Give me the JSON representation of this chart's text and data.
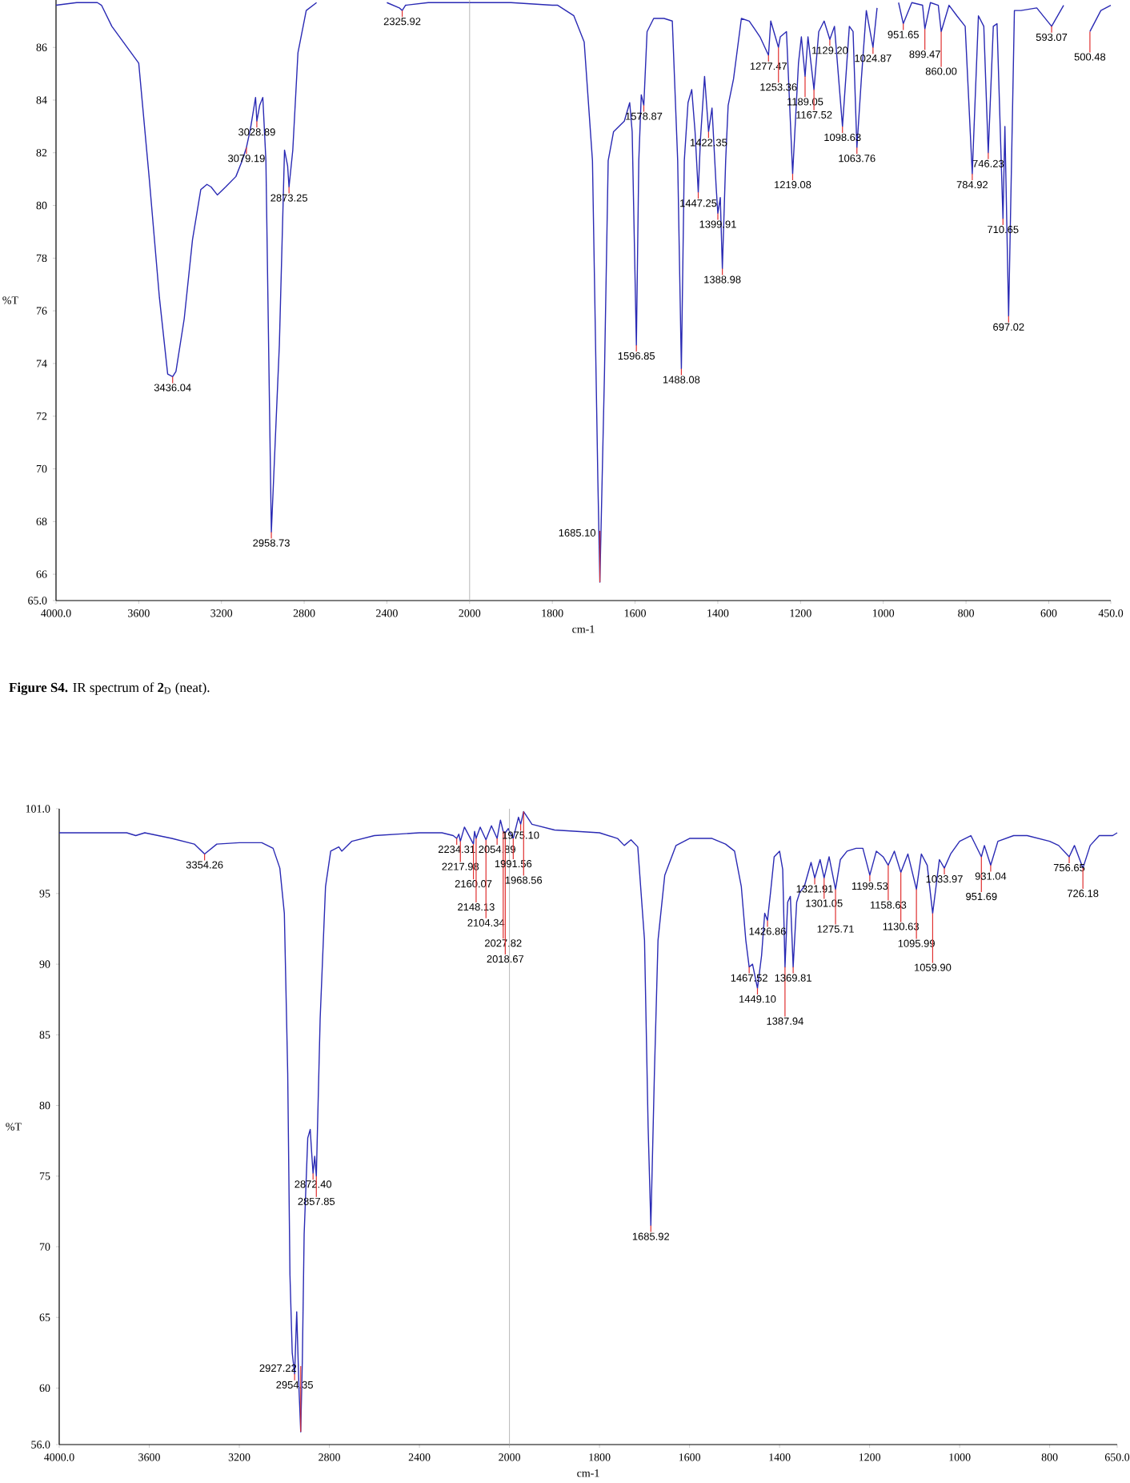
{
  "chart_data": [
    {
      "type": "line",
      "ylabel": "%T",
      "color": "#2a2ab4",
      "xlim": [
        4000,
        2000
      ],
      "ylim": [
        65.0,
        87.8
      ],
      "xticks": [
        {
          "value": 4000,
          "label": "4000.0"
        },
        3600,
        3200,
        2800,
        2400,
        2000
      ],
      "yticks": [
        {
          "value": 65,
          "label": "65.0"
        },
        66,
        68,
        70,
        72,
        74,
        76,
        78,
        80,
        82,
        84,
        86
      ],
      "x": [
        4000,
        3900,
        3800,
        3780,
        3730,
        3600,
        3550,
        3500,
        3460,
        3436.04,
        3420,
        3380,
        3340,
        3300,
        3270,
        3250,
        3220,
        3180,
        3130,
        3100,
        3079.19,
        3060,
        3035,
        3028.89,
        3015,
        3000,
        2985,
        2958.73,
        2920,
        2895,
        2880,
        2873.25,
        2855,
        2830,
        2790,
        2740,
        2600,
        2400,
        2340,
        2325.92,
        2310,
        2200,
        2000
      ],
      "values": [
        87.6,
        87.7,
        87.7,
        87.6,
        86.8,
        85.4,
        81.1,
        76.5,
        73.6,
        73.5,
        73.7,
        75.7,
        78.7,
        80.6,
        80.8,
        80.7,
        80.4,
        80.7,
        81.1,
        81.7,
        82.2,
        82.9,
        84.1,
        83.2,
        83.8,
        84.1,
        81.7,
        67.6,
        74.7,
        82.1,
        81.5,
        80.7,
        82.1,
        85.8,
        87.4,
        87.7,
        null,
        87.7,
        87.5,
        87.4,
        87.6,
        87.7,
        87.7
      ],
      "annotations": [
        {
          "text": "3436.04",
          "x": 3436.04,
          "y": 73.5
        },
        {
          "text": "3079.19",
          "x": 3079.19,
          "y": 82.2
        },
        {
          "text": "3028.89",
          "x": 3028.89,
          "y": 83.2
        },
        {
          "text": "2958.73",
          "x": 2958.73,
          "y": 67.6
        },
        {
          "text": "2873.25",
          "x": 2873.25,
          "y": 80.7
        },
        {
          "text": "2325.92",
          "x": 2325.92,
          "y": 87.4
        },
        "**Figure S4.** IR spectrum of **2**$_{D}$ (neat)."
      ]
    },
    {
      "type": "line",
      "xlabel": "cm-1",
      "color": "#2a2ab4",
      "tick_labels": "x",
      "xlim": [
        2000,
        450
      ],
      "ylim": [
        65.0,
        87.8
      ],
      "xticks": [
        1800,
        1600,
        1400,
        1200,
        1000,
        800,
        600,
        {
          "value": 450,
          "label": "450.0"
        }
      ],
      "x": [
        2000,
        1900,
        1800,
        1787,
        1748,
        1723,
        1703,
        1690,
        1685.1,
        1674,
        1665,
        1652,
        1626,
        1613,
        1607,
        1596.85,
        1591,
        1585,
        1578.87,
        1571,
        1555,
        1530,
        1510,
        1497,
        1488.08,
        1481,
        1472,
        1463,
        1455,
        1447.25,
        1442,
        1432,
        1422.35,
        1414,
        1404,
        1399.91,
        1394,
        1388.98,
        1381,
        1375,
        1362,
        1343,
        1324,
        1311,
        1298,
        1277.47,
        1272,
        1253.36,
        1249,
        1234,
        1219.08,
        1205,
        1198,
        1189.05,
        1182,
        1167.52,
        1156,
        1143,
        1129.2,
        1118,
        1098.63,
        1082,
        1073,
        1063.76,
        1053,
        1041,
        1024.87,
        1015,
        989,
        963,
        951.65,
        931,
        905,
        899.47,
        886,
        867,
        860.0,
        841,
        822,
        802,
        784.92,
        770,
        757,
        746.23,
        734,
        725,
        710.65,
        706,
        697.02,
        683,
        667,
        629,
        593.07,
        564,
        526,
        500.48,
        474,
        450
      ],
      "values": [
        87.7,
        87.7,
        87.6,
        87.6,
        87.2,
        86.2,
        81.7,
        69.6,
        65.7,
        73.6,
        81.7,
        82.8,
        83.2,
        83.9,
        82.8,
        74.7,
        81.7,
        84.2,
        83.8,
        86.6,
        87.1,
        87.1,
        87.0,
        81.7,
        73.8,
        81.7,
        83.9,
        84.4,
        82.8,
        80.5,
        82.5,
        84.9,
        82.8,
        83.7,
        80.7,
        79.7,
        80.3,
        77.6,
        81.7,
        83.8,
        84.8,
        87.1,
        87.0,
        86.7,
        86.4,
        85.7,
        87.0,
        86.0,
        86.4,
        86.6,
        81.2,
        85.4,
        86.4,
        84.9,
        86.4,
        84.4,
        86.6,
        87.0,
        86.3,
        86.8,
        83.0,
        86.8,
        86.6,
        82.2,
        84.8,
        87.4,
        86.0,
        87.5,
        null,
        87.7,
        86.9,
        87.7,
        87.6,
        86.7,
        87.7,
        87.6,
        86.6,
        87.6,
        87.2,
        86.8,
        81.2,
        87.2,
        86.8,
        82.0,
        86.8,
        86.9,
        79.5,
        83.0,
        75.8,
        87.4,
        87.4,
        87.5,
        86.8,
        87.6,
        null,
        86.6,
        87.4,
        87.6
      ],
      "annotations": [
        {
          "text": "1685.10",
          "x": 1685.1,
          "y": 65.7
        },
        {
          "text": "1596.85",
          "x": 1596.85,
          "y": 74.7
        },
        {
          "text": "1578.87",
          "x": 1578.87,
          "y": 83.8
        },
        {
          "text": "1488.08",
          "x": 1488.08,
          "y": 73.8
        },
        {
          "text": "1447.25",
          "x": 1447.25,
          "y": 80.5
        },
        {
          "text": "1422.35",
          "x": 1422.35,
          "y": 82.8
        },
        {
          "text": "1399.91",
          "x": 1399.91,
          "y": 79.7
        },
        {
          "text": "1388.98",
          "x": 1388.98,
          "y": 77.6
        },
        {
          "text": "1277.47",
          "x": 1277.47,
          "y": 85.7
        },
        {
          "text": "1253.36",
          "x": 1253.36,
          "y": 86.0
        },
        {
          "text": "1219.08",
          "x": 1219.08,
          "y": 81.2
        },
        {
          "text": "1189.05",
          "x": 1189.05,
          "y": 84.9
        },
        {
          "text": "1167.52",
          "x": 1167.52,
          "y": 84.4
        },
        {
          "text": "1129.20",
          "x": 1129.2,
          "y": 86.3
        },
        {
          "text": "1098.63",
          "x": 1098.63,
          "y": 83.0
        },
        {
          "text": "1063.76",
          "x": 1063.76,
          "y": 82.2
        },
        {
          "text": "1024.87",
          "x": 1024.87,
          "y": 86.0
        },
        {
          "text": "951.65",
          "x": 951.65,
          "y": 86.9
        },
        {
          "text": "899.47",
          "x": 899.47,
          "y": 86.7
        },
        {
          "text": "860.00",
          "x": 860.0,
          "y": 86.6
        },
        {
          "text": "784.92",
          "x": 784.92,
          "y": 81.2
        },
        {
          "text": "746.23",
          "x": 746.23,
          "y": 82.0
        },
        {
          "text": "710.65",
          "x": 710.65,
          "y": 79.5
        },
        {
          "text": "697.02",
          "x": 697.02,
          "y": 75.8
        },
        {
          "text": "593.07",
          "x": 593.07,
          "y": 86.8
        },
        {
          "text": "500.48",
          "x": 500.48,
          "y": 86.6
        }
      ]
    },
    {
      "type": "line",
      "ylabel": "%T",
      "color": "#2a2ab4",
      "xlim": [
        4000,
        2000
      ],
      "ylim": [
        56.0,
        101.0
      ],
      "xticks": [
        {
          "value": 4000,
          "label": "4000.0"
        },
        3600,
        3200,
        2800,
        2400,
        2000
      ],
      "yticks": [
        {
          "value": 56,
          "label": "56.0"
        },
        60,
        65,
        70,
        75,
        80,
        85,
        90,
        95,
        {
          "value": 101,
          "label": "101.0"
        }
      ],
      "x": [
        4000,
        3800,
        3700,
        3660,
        3620,
        3500,
        3400,
        3354.26,
        3300,
        3200,
        3100,
        3050,
        3020,
        3000,
        2985,
        2975,
        2965,
        2954.35,
        2945,
        2935,
        2927.22,
        2920,
        2912,
        2896,
        2885,
        2878,
        2872.4,
        2865,
        2857.85,
        2841,
        2817,
        2794,
        2758,
        2745,
        2700,
        2600,
        2400,
        2300,
        2250,
        2234.31,
        2225,
        2217.98,
        2200,
        2160.07,
        2155,
        2148.13,
        2130,
        2104.34,
        2080,
        2054.89,
        2040,
        2027.82,
        2018.67,
        2005,
        2000
      ],
      "values": [
        99.3,
        99.3,
        99.3,
        99.1,
        99.3,
        98.9,
        98.5,
        97.8,
        98.5,
        98.6,
        98.6,
        98.2,
        96.8,
        93.6,
        82.3,
        68.0,
        62.5,
        61.0,
        65.4,
        60.0,
        56.9,
        62.0,
        70.9,
        77.7,
        78.3,
        76.5,
        75.2,
        76.4,
        75.0,
        86.1,
        95.5,
        98.0,
        98.3,
        98.0,
        98.7,
        99.1,
        99.3,
        99.3,
        99.1,
        98.9,
        99.2,
        98.7,
        99.7,
        98.5,
        99.4,
        98.9,
        99.7,
        98.8,
        99.8,
        98.9,
        100.2,
        99.4,
        99.3,
        99.6,
        99.4
      ],
      "annotations": [
        {
          "text": "3354.26",
          "x": 3354.26,
          "y": 97.8
        },
        {
          "text": "2954.35",
          "x": 2954.35,
          "y": 61.0
        },
        {
          "text": "2927.22",
          "x": 2927.22,
          "y": 56.9
        },
        {
          "text": "2872.40",
          "x": 2872.4,
          "y": 75.2
        },
        {
          "text": "2857.85",
          "x": 2857.85,
          "y": 75.0
        },
        {
          "text": "2234.31",
          "x": 2234.31,
          "y": 98.9
        },
        {
          "text": "2217.98",
          "x": 2217.98,
          "y": 98.7
        },
        {
          "text": "2160.07",
          "x": 2160.07,
          "y": 98.5
        },
        {
          "text": "2148.13",
          "x": 2148.13,
          "y": 98.9
        },
        {
          "text": "2104.34",
          "x": 2104.34,
          "y": 98.8
        },
        {
          "text": "2054.89",
          "x": 2054.89,
          "y": 98.9
        },
        {
          "text": "2027.82",
          "x": 2027.82,
          "y": 99.4
        },
        {
          "text": "2018.67",
          "x": 2018.67,
          "y": 99.3
        }
      ]
    },
    {
      "type": "line",
      "xlabel": "cm-1",
      "color": "#2a2ab4",
      "tick_labels": "x",
      "xlim": [
        2000,
        650
      ],
      "ylim": [
        56.0,
        101.0
      ],
      "xticks": [
        1800,
        1600,
        1400,
        1200,
        1000,
        800,
        {
          "value": 650,
          "label": "650.0"
        }
      ],
      "x": [
        2000,
        1991.56,
        1980,
        1975.1,
        1968.56,
        1950,
        1900,
        1800,
        1760,
        1745,
        1730,
        1715,
        1700,
        1692,
        1685.92,
        1678,
        1670,
        1655,
        1630,
        1600,
        1550,
        1520,
        1500,
        1485,
        1475,
        1467.52,
        1460,
        1449.1,
        1440,
        1433,
        1426.86,
        1420,
        1412,
        1400,
        1393,
        1387.94,
        1382,
        1376,
        1369.81,
        1362,
        1355,
        1345,
        1330,
        1321.91,
        1310,
        1301.05,
        1290,
        1275.71,
        1265,
        1250,
        1230,
        1215,
        1199.53,
        1185,
        1170,
        1158.63,
        1145,
        1130.63,
        1115,
        1095.99,
        1085,
        1072,
        1059.9,
        1045,
        1033.97,
        1020,
        1000,
        975,
        951.69,
        945,
        931.04,
        915,
        880,
        850,
        800,
        780,
        756.65,
        745,
        726.18,
        710,
        690,
        660,
        650
      ],
      "values": [
        99.4,
        98.9,
        100.4,
        99.9,
        100.8,
        99.9,
        99.5,
        99.3,
        98.9,
        98.4,
        98.8,
        98.3,
        91.7,
        78.5,
        71.5,
        82.3,
        91.7,
        96.3,
        98.4,
        98.9,
        98.9,
        98.5,
        98.0,
        95.5,
        91.7,
        89.8,
        90.0,
        88.3,
        90.6,
        93.6,
        93.1,
        95.1,
        97.6,
        98.0,
        96.7,
        89.8,
        94.4,
        94.8,
        89.8,
        94.4,
        95.1,
        95.5,
        97.2,
        96.1,
        97.4,
        96.1,
        97.6,
        95.3,
        97.4,
        98.0,
        98.2,
        98.2,
        96.3,
        98.0,
        97.6,
        97.0,
        98.0,
        96.5,
        97.8,
        95.3,
        97.8,
        97.0,
        93.6,
        97.4,
        96.8,
        97.8,
        98.7,
        99.1,
        97.6,
        98.4,
        97.0,
        98.7,
        99.1,
        99.1,
        98.7,
        98.4,
        97.6,
        98.4,
        96.8,
        98.4,
        99.1,
        99.1,
        99.3
      ],
      "annotations": [
        {
          "text": "1991.56",
          "x": 1991.56,
          "y": 98.9
        },
        {
          "text": "1975.10",
          "x": 1975.1,
          "y": 99.9
        },
        {
          "text": "1968.56",
          "x": 1968.56,
          "y": 100.8
        },
        {
          "text": "1685.92",
          "x": 1685.92,
          "y": 71.5
        },
        {
          "text": "1467.52",
          "x": 1467.52,
          "y": 89.8
        },
        {
          "text": "1449.10",
          "x": 1449.1,
          "y": 88.3
        },
        {
          "text": "1426.86",
          "x": 1426.86,
          "y": 93.1
        },
        {
          "text": "1387.94",
          "x": 1387.94,
          "y": 89.8
        },
        {
          "text": "1369.81",
          "x": 1369.81,
          "y": 89.8
        },
        {
          "text": "1321.91",
          "x": 1321.91,
          "y": 96.1
        },
        {
          "text": "1301.05",
          "x": 1301.05,
          "y": 96.1
        },
        {
          "text": "1275.71",
          "x": 1275.71,
          "y": 95.3
        },
        {
          "text": "1199.53",
          "x": 1199.53,
          "y": 96.3
        },
        {
          "text": "1158.63",
          "x": 1158.63,
          "y": 97.0
        },
        {
          "text": "1130.63",
          "x": 1130.63,
          "y": 96.5
        },
        {
          "text": "1095.99",
          "x": 1095.99,
          "y": 95.3
        },
        {
          "text": "1059.90",
          "x": 1059.9,
          "y": 93.6
        },
        {
          "text": "1033.97",
          "x": 1033.97,
          "y": 96.8
        },
        {
          "text": "951.69",
          "x": 951.69,
          "y": 97.6
        },
        {
          "text": "931.04",
          "x": 931.04,
          "y": 97.0
        },
        {
          "text": "756.65",
          "x": 756.65,
          "y": 97.6
        },
        {
          "text": "726.18",
          "x": 726.18,
          "y": 96.8
        }
      ]
    }
  ]
}
